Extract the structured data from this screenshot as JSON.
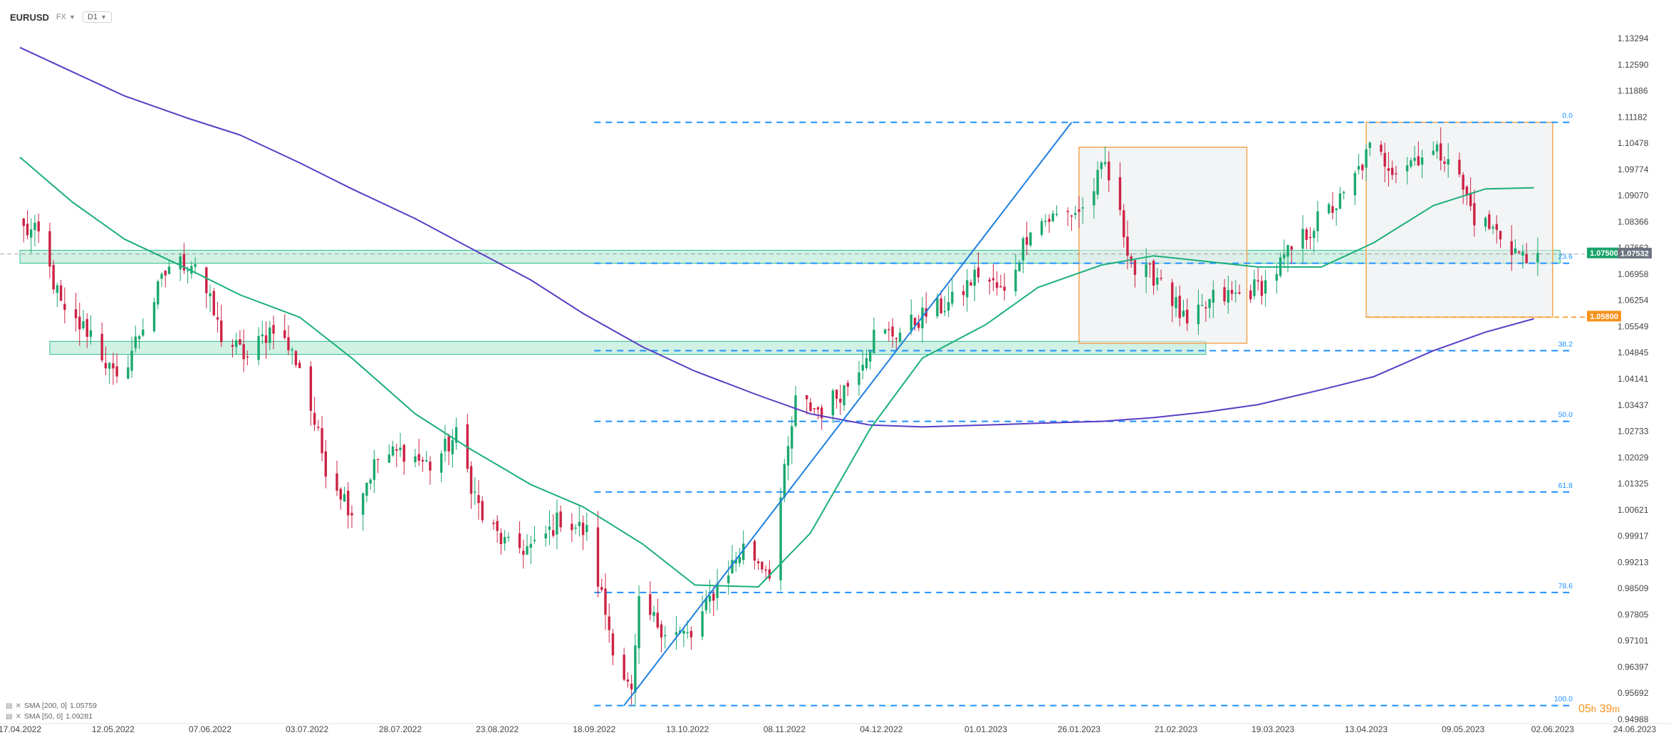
{
  "header": {
    "symbol": "EURUSD",
    "market": "FX",
    "timeframe": "D1"
  },
  "indicators": [
    {
      "label": "SMA [200, 0]",
      "value": "1.05759",
      "color": "#5b3cc4"
    },
    {
      "label": "SMA [50, 0]",
      "value": "1.09281",
      "color": "#1aaf79"
    }
  ],
  "countdown": {
    "hours": "05",
    "hours_unit": "h",
    "minutes": "39",
    "minutes_unit": "m"
  },
  "colors": {
    "bull": "#1aa86e",
    "bear": "#cc2244",
    "fib": "#1e90ff",
    "zone": "#2ebf8a",
    "box_border": "#f7a046",
    "sma200": "#5b3cc4",
    "sma50": "#1aaf79",
    "trendline": "#1e7fe0",
    "tag_green": "#19a36a",
    "tag_orange": "#f7931e",
    "tag_grey": "#6b7480"
  },
  "chart_data": {
    "type": "candlestick",
    "instrument": "EURUSD",
    "y_axis": {
      "ticks": [
        "1.13294",
        "1.12590",
        "1.11886",
        "1.11182",
        "1.10478",
        "1.09774",
        "1.09070",
        "1.08366",
        "1.07662",
        "1.06958",
        "1.06254",
        "1.05549",
        "1.04845",
        "1.04141",
        "1.03437",
        "1.02733",
        "1.02029",
        "1.01325",
        "1.00621",
        "0.99917",
        "0.99213",
        "0.98509",
        "0.97805",
        "0.97101",
        "0.96397",
        "0.95692",
        "0.94988"
      ],
      "range": [
        0.94988,
        1.13294
      ]
    },
    "x_axis": {
      "ticks": [
        "17.04.2022",
        "12.05.2022",
        "07.06.2022",
        "03.07.2022",
        "28.07.2022",
        "23.08.2022",
        "18.09.2022",
        "13.10.2022",
        "08.11.2022",
        "04.12.2022",
        "01.01.2023",
        "26.01.2023",
        "21.02.2023",
        "19.03.2023",
        "13.04.2023",
        "09.05.2023",
        "02.06.2023",
        "24.06.2023"
      ]
    },
    "fibonacci": {
      "anchor_low": "18.09.2022",
      "levels": [
        {
          "label": "0.0",
          "price": 1.1104
        },
        {
          "label": "23.6",
          "price": 1.0725
        },
        {
          "label": "38.2",
          "price": 1.049
        },
        {
          "label": "50.0",
          "price": 1.03
        },
        {
          "label": "61.8",
          "price": 1.011
        },
        {
          "label": "78.6",
          "price": 0.984
        },
        {
          "label": "100.0",
          "price": 0.9536
        }
      ]
    },
    "support_zones": [
      {
        "from": "17.04.2022",
        "to": "04.06.2023",
        "low": 1.0725,
        "high": 1.076
      },
      {
        "from": "25.04.2022",
        "to": "01.03.2023",
        "low": 1.048,
        "high": 1.0515
      }
    ],
    "consolidation_boxes": [
      {
        "from": "26.01.2023",
        "to": "12.03.2023",
        "low": 1.051,
        "high": 1.1037
      },
      {
        "from": "13.04.2023",
        "to": "02.06.2023",
        "low": 1.058,
        "high": 1.1104
      }
    ],
    "trendline": {
      "from": "26.09.2022",
      "from_price": 0.9536,
      "to": "24.01.2023",
      "to_price": 1.1104
    },
    "price_tags": [
      {
        "text": "1.07500",
        "price": 1.075,
        "style": "green"
      },
      {
        "text": "1.07532",
        "price": 1.07532,
        "style": "grey"
      },
      {
        "text": "1.05800",
        "price": 1.058,
        "style": "orange"
      }
    ],
    "sma200": [
      [
        "17.04.2022",
        1.1305
      ],
      [
        "01.05.2022",
        1.124
      ],
      [
        "15.05.2022",
        1.1175
      ],
      [
        "01.06.2022",
        1.1115
      ],
      [
        "15.06.2022",
        1.107
      ],
      [
        "01.07.2022",
        1.0995
      ],
      [
        "15.07.2022",
        1.0925
      ],
      [
        "01.08.2022",
        1.0845
      ],
      [
        "15.08.2022",
        1.077
      ],
      [
        "01.09.2022",
        1.068
      ],
      [
        "15.09.2022",
        1.059
      ],
      [
        "01.10.2022",
        1.05
      ],
      [
        "15.10.2022",
        1.0435
      ],
      [
        "01.11.2022",
        1.037
      ],
      [
        "15.11.2022",
        1.032
      ],
      [
        "01.12.2022",
        1.029
      ],
      [
        "15.12.2022",
        1.0285
      ],
      [
        "01.01.2023",
        1.029
      ],
      [
        "15.01.2023",
        1.0295
      ],
      [
        "01.02.2023",
        1.03
      ],
      [
        "15.02.2023",
        1.031
      ],
      [
        "01.03.2023",
        1.0325
      ],
      [
        "15.03.2023",
        1.0345
      ],
      [
        "01.04.2023",
        1.0385
      ],
      [
        "15.04.2023",
        1.042
      ],
      [
        "01.05.2023",
        1.049
      ],
      [
        "15.05.2023",
        1.054
      ],
      [
        "28.05.2023",
        1.0576
      ]
    ],
    "sma50": [
      [
        "17.04.2022",
        1.101
      ],
      [
        "01.05.2022",
        1.089
      ],
      [
        "15.05.2022",
        1.079
      ],
      [
        "01.06.2022",
        1.071
      ],
      [
        "15.06.2022",
        1.064
      ],
      [
        "01.07.2022",
        1.058
      ],
      [
        "15.07.2022",
        1.047
      ],
      [
        "01.08.2022",
        1.032
      ],
      [
        "15.08.2022",
        1.023
      ],
      [
        "01.09.2022",
        1.013
      ],
      [
        "15.09.2022",
        1.007
      ],
      [
        "01.10.2022",
        0.997
      ],
      [
        "15.10.2022",
        0.986
      ],
      [
        "01.11.2022",
        0.9855
      ],
      [
        "15.11.2022",
        1.0
      ],
      [
        "01.12.2022",
        1.028
      ],
      [
        "15.12.2022",
        1.047
      ],
      [
        "01.01.2023",
        1.056
      ],
      [
        "15.01.2023",
        1.066
      ],
      [
        "01.02.2023",
        1.072
      ],
      [
        "15.02.2023",
        1.0745
      ],
      [
        "01.03.2023",
        1.073
      ],
      [
        "15.03.2023",
        1.0715
      ],
      [
        "01.04.2023",
        1.0715
      ],
      [
        "15.04.2023",
        1.078
      ],
      [
        "01.05.2023",
        1.088
      ],
      [
        "15.05.2023",
        1.0925
      ],
      [
        "28.05.2023",
        1.0928
      ]
    ],
    "price_path": [
      [
        "17.04.2022",
        1.082
      ],
      [
        "22.04.2022",
        1.08
      ],
      [
        "29.04.2022",
        1.058
      ],
      [
        "06.05.2022",
        1.054
      ],
      [
        "13.05.2022",
        1.04
      ],
      [
        "20.05.2022",
        1.056
      ],
      [
        "27.05.2022",
        1.072
      ],
      [
        "03.06.2022",
        1.073
      ],
      [
        "10.06.2022",
        1.053
      ],
      [
        "17.06.2022",
        1.047
      ],
      [
        "24.06.2022",
        1.056
      ],
      [
        "01.07.2022",
        1.045
      ],
      [
        "08.07.2022",
        1.018
      ],
      [
        "15.07.2022",
        1.006
      ],
      [
        "22.07.2022",
        1.02
      ],
      [
        "29.07.2022",
        1.022
      ],
      [
        "05.08.2022",
        1.018
      ],
      [
        "12.08.2022",
        1.026
      ],
      [
        "19.08.2022",
        1.004
      ],
      [
        "26.08.2022",
        0.996
      ],
      [
        "02.09.2022",
        0.996
      ],
      [
        "09.09.2022",
        1.004
      ],
      [
        "16.09.2022",
        1.0
      ],
      [
        "23.09.2022",
        0.97
      ],
      [
        "28.09.2022",
        0.956
      ],
      [
        "30.09.2022",
        0.98
      ],
      [
        "07.10.2022",
        0.974
      ],
      [
        "14.10.2022",
        0.972
      ],
      [
        "21.10.2022",
        0.986
      ],
      [
        "28.10.2022",
        0.996
      ],
      [
        "04.11.2022",
        0.99
      ],
      [
        "11.11.2022",
        1.035
      ],
      [
        "18.11.2022",
        1.033
      ],
      [
        "25.11.2022",
        1.04
      ],
      [
        "02.12.2022",
        1.053
      ],
      [
        "09.12.2022",
        1.054
      ],
      [
        "16.12.2022",
        1.059
      ],
      [
        "23.12.2022",
        1.062
      ],
      [
        "30.12.2022",
        1.07
      ],
      [
        "06.01.2023",
        1.064
      ],
      [
        "13.01.2023",
        1.083
      ],
      [
        "20.01.2023",
        1.085
      ],
      [
        "27.01.2023",
        1.087
      ],
      [
        "02.02.2023",
        1.099
      ],
      [
        "10.02.2023",
        1.07
      ],
      [
        "17.02.2023",
        1.069
      ],
      [
        "24.02.2023",
        1.055
      ],
      [
        "03.03.2023",
        1.063
      ],
      [
        "10.03.2023",
        1.064
      ],
      [
        "17.03.2023",
        1.067
      ],
      [
        "24.03.2023",
        1.076
      ],
      [
        "31.03.2023",
        1.084
      ],
      [
        "07.04.2023",
        1.09
      ],
      [
        "14.04.2023",
        1.103
      ],
      [
        "21.04.2023",
        1.098
      ],
      [
        "28.04.2023",
        1.102
      ],
      [
        "05.05.2023",
        1.102
      ],
      [
        "12.05.2023",
        1.085
      ],
      [
        "19.05.2023",
        1.08
      ],
      [
        "26.05.2023",
        1.073
      ],
      [
        "29.05.2023",
        1.0753
      ]
    ]
  }
}
